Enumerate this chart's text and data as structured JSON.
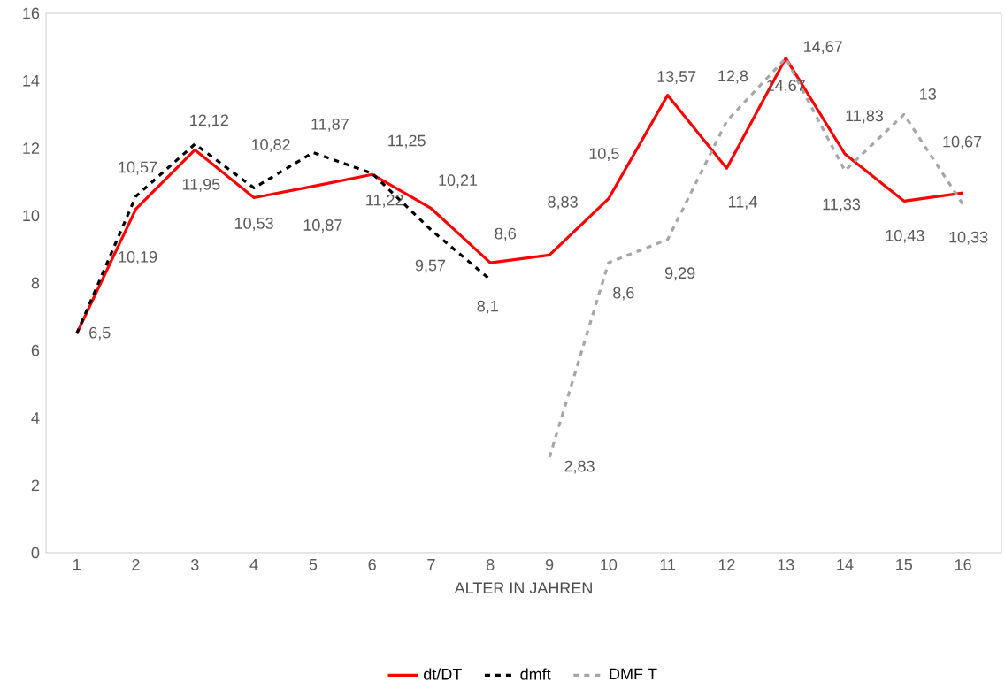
{
  "chart_data": {
    "type": "line",
    "xlabel": "ALTER IN JAHREN",
    "categories": [
      "1",
      "2",
      "3",
      "4",
      "5",
      "6",
      "7",
      "8",
      "9",
      "10",
      "11",
      "12",
      "13",
      "14",
      "15",
      "16"
    ],
    "series": [
      {
        "name": "dt/DT",
        "color": "#ff0000",
        "line_style": "solid",
        "values": [
          6.5,
          10.19,
          11.95,
          10.53,
          10.87,
          11.22,
          10.21,
          8.6,
          8.83,
          10.5,
          13.57,
          11.4,
          14.67,
          11.83,
          10.43,
          10.67
        ],
        "value_labels": [
          "6,5",
          "10,19",
          "11,95",
          "10,53",
          "10,87",
          "11,22",
          "10,21",
          "8,6",
          "8,83",
          "10,5",
          "13,57",
          "11,4",
          "14,67",
          "11,83",
          "10,43",
          "10,67"
        ]
      },
      {
        "name": "dmft",
        "color": "#000000",
        "line_style": "dashed",
        "values": [
          6.5,
          10.57,
          12.12,
          10.82,
          11.87,
          11.25,
          9.57,
          8.1,
          null,
          null,
          null,
          null,
          null,
          null,
          null,
          null
        ],
        "value_labels": [
          null,
          "10,57",
          "12,12",
          "10,82",
          "11,87",
          "11,25",
          "9,57",
          "8,1",
          null,
          null,
          null,
          null,
          null,
          null,
          null,
          null
        ]
      },
      {
        "name": "DMF T",
        "color": "#a6a6a6",
        "line_style": "dashed",
        "values": [
          null,
          null,
          null,
          null,
          null,
          null,
          null,
          null,
          2.83,
          8.6,
          9.29,
          12.8,
          14.67,
          11.33,
          13,
          10.33
        ],
        "value_labels": [
          null,
          null,
          null,
          null,
          null,
          null,
          null,
          null,
          "2,83",
          "8,6",
          "9,29",
          "12,8",
          "14,67",
          "11,33",
          "13",
          "10,33"
        ]
      }
    ],
    "ylim": [
      0,
      16
    ],
    "yticks": [
      0,
      2,
      4,
      6,
      8,
      10,
      12,
      14,
      16
    ],
    "grid": false,
    "legend": "bottom",
    "marker": "none"
  }
}
